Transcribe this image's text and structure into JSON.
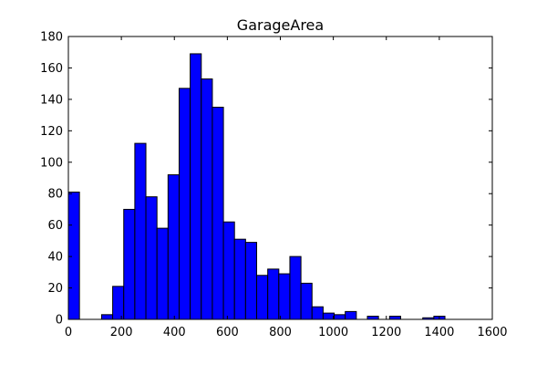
{
  "chart_data": {
    "type": "bar",
    "title": "GarageArea",
    "xlabel": "",
    "ylabel": "",
    "xlim": [
      0,
      1600
    ],
    "ylim": [
      0,
      180
    ],
    "xticks": [
      0,
      200,
      400,
      600,
      800,
      1000,
      1200,
      1400,
      1600
    ],
    "yticks": [
      0,
      20,
      40,
      60,
      80,
      100,
      120,
      140,
      160,
      180
    ],
    "grid": false,
    "bar_color": "#0000ff",
    "edge_color": "#000000",
    "bins": [
      {
        "x0": 0,
        "x1": 41.8,
        "count": 81
      },
      {
        "x0": 41.8,
        "x1": 83.6,
        "count": 0
      },
      {
        "x0": 83.6,
        "x1": 125.4,
        "count": 0
      },
      {
        "x0": 125.4,
        "x1": 167.2,
        "count": 3
      },
      {
        "x0": 167.2,
        "x1": 209.0,
        "count": 21
      },
      {
        "x0": 209.0,
        "x1": 250.8,
        "count": 70
      },
      {
        "x0": 250.8,
        "x1": 292.6,
        "count": 112
      },
      {
        "x0": 292.6,
        "x1": 334.4,
        "count": 78
      },
      {
        "x0": 334.4,
        "x1": 376.2,
        "count": 58
      },
      {
        "x0": 376.2,
        "x1": 418.0,
        "count": 92
      },
      {
        "x0": 418.0,
        "x1": 459.8,
        "count": 147
      },
      {
        "x0": 459.8,
        "x1": 501.6,
        "count": 169
      },
      {
        "x0": 501.6,
        "x1": 543.4,
        "count": 153
      },
      {
        "x0": 543.4,
        "x1": 585.2,
        "count": 135
      },
      {
        "x0": 585.2,
        "x1": 627.0,
        "count": 62
      },
      {
        "x0": 627.0,
        "x1": 668.8,
        "count": 51
      },
      {
        "x0": 668.8,
        "x1": 710.6,
        "count": 49
      },
      {
        "x0": 710.6,
        "x1": 752.4,
        "count": 28
      },
      {
        "x0": 752.4,
        "x1": 794.2,
        "count": 32
      },
      {
        "x0": 794.2,
        "x1": 836.0,
        "count": 29
      },
      {
        "x0": 836.0,
        "x1": 877.8,
        "count": 40
      },
      {
        "x0": 877.8,
        "x1": 919.6,
        "count": 23
      },
      {
        "x0": 919.6,
        "x1": 961.4,
        "count": 8
      },
      {
        "x0": 961.4,
        "x1": 1003.2,
        "count": 4
      },
      {
        "x0": 1003.2,
        "x1": 1045.0,
        "count": 3
      },
      {
        "x0": 1045.0,
        "x1": 1086.8,
        "count": 5
      },
      {
        "x0": 1086.8,
        "x1": 1128.6,
        "count": 0
      },
      {
        "x0": 1128.6,
        "x1": 1170.4,
        "count": 2
      },
      {
        "x0": 1170.4,
        "x1": 1212.2,
        "count": 0
      },
      {
        "x0": 1212.2,
        "x1": 1254.0,
        "count": 2
      },
      {
        "x0": 1254.0,
        "x1": 1295.8,
        "count": 0
      },
      {
        "x0": 1295.8,
        "x1": 1337.6,
        "count": 0
      },
      {
        "x0": 1337.6,
        "x1": 1379.4,
        "count": 1
      },
      {
        "x0": 1379.4,
        "x1": 1421.2,
        "count": 2
      }
    ]
  }
}
